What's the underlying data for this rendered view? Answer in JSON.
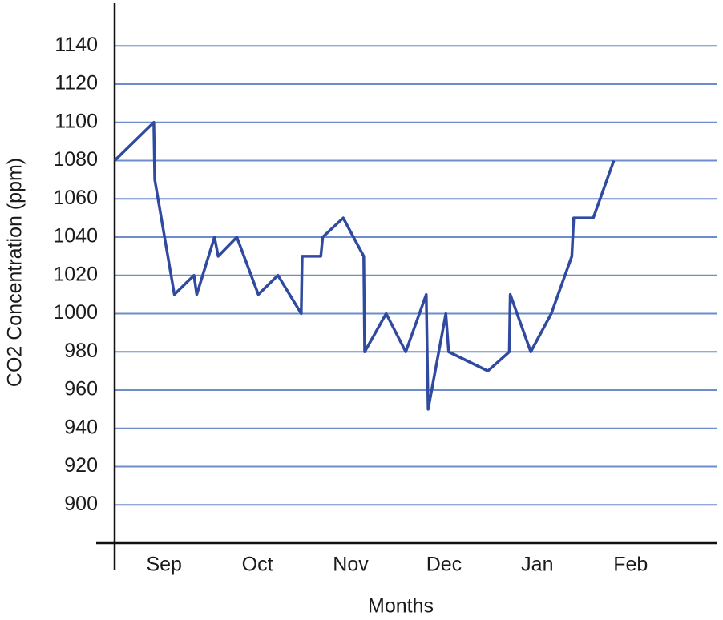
{
  "chart_data": {
    "type": "line",
    "x_label": "Months",
    "y_label": "CO2 Concentration (ppm)",
    "x": [
      0.47,
      0.89,
      0.9,
      1.11,
      1.32,
      1.35,
      1.54,
      1.58,
      1.78,
      2.01,
      2.22,
      2.47,
      2.48,
      2.68,
      2.7,
      2.92,
      3.14,
      3.15,
      3.38,
      3.59,
      3.81,
      3.83,
      4.02,
      4.05,
      4.47,
      4.7,
      4.71,
      4.93,
      5.15,
      5.37,
      5.39,
      5.6,
      5.82
    ],
    "series": [
      {
        "name": "CO2",
        "color": "#2f4a9f",
        "values": [
          1080,
          1100,
          1070,
          1010,
          1020,
          1010,
          1040,
          1030,
          1040,
          1010,
          1020,
          1000,
          1030,
          1030,
          1040,
          1050,
          1030,
          980,
          1000,
          980,
          1010,
          950,
          1000,
          980,
          970,
          980,
          1010,
          980,
          1000,
          1030,
          1050,
          1050,
          1080
        ]
      }
    ],
    "xlim": [
      0.47,
      6.93
    ],
    "xticks": [
      {
        "value": 1,
        "label": "Sep"
      },
      {
        "value": 2,
        "label": "Oct"
      },
      {
        "value": 3,
        "label": "Nov"
      },
      {
        "value": 4,
        "label": "Dec"
      },
      {
        "value": 5,
        "label": "Jan"
      },
      {
        "value": 6,
        "label": "Feb"
      }
    ],
    "ylim": [
      880,
      1160
    ],
    "yticks": [
      900,
      920,
      940,
      960,
      980,
      1000,
      1020,
      1040,
      1060,
      1080,
      1100,
      1120,
      1140
    ],
    "grid": true
  }
}
